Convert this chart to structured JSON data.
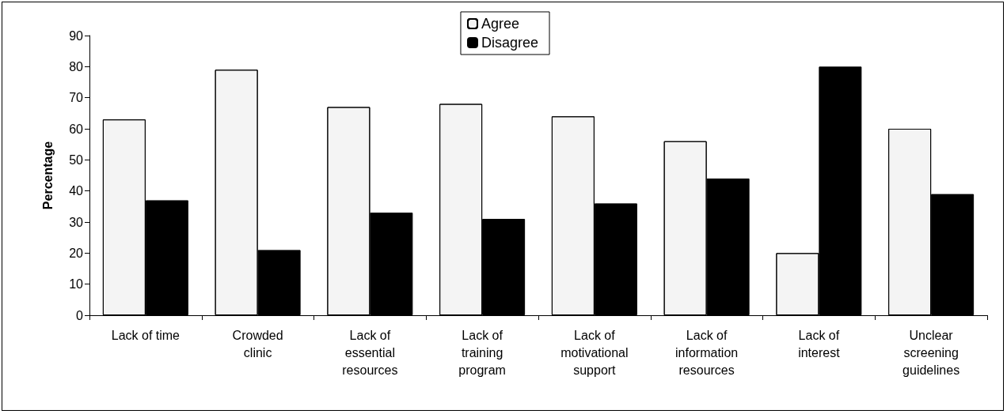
{
  "chart_data": {
    "type": "bar",
    "ylabel": "Percentage",
    "categories": [
      "Lack of time",
      "Crowded clinic",
      "Lack of essential resources",
      "Lack of training program",
      "Lack of motivational support",
      "Lack of information resources",
      "Lack of interest",
      "Unclear screening guidelines"
    ],
    "series": [
      {
        "name": "Agree",
        "color": "#f4f4f4",
        "values": [
          63,
          79,
          67,
          68,
          64,
          56,
          20,
          60
        ]
      },
      {
        "name": "Disagree",
        "color": "#000000",
        "values": [
          37,
          21,
          33,
          31,
          36,
          44,
          80,
          39
        ]
      }
    ],
    "ylim": [
      0,
      90
    ],
    "yticks": [
      0,
      10,
      20,
      30,
      40,
      50,
      60,
      70,
      80,
      90
    ],
    "grid": false,
    "legend": "top"
  }
}
